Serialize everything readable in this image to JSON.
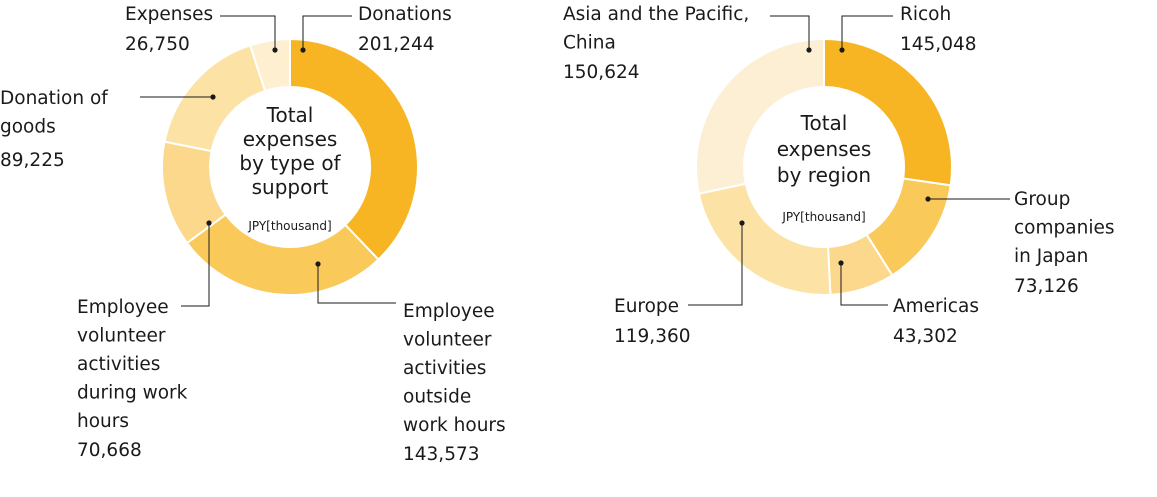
{
  "chart_data": [
    {
      "type": "pie",
      "donut": true,
      "center_title": [
        "Total",
        "expenses",
        "by type of",
        "support"
      ],
      "unit": "JPY[thousand]",
      "slices": [
        {
          "label": [
            "Donations"
          ],
          "value": 201244,
          "value_text": "201,244",
          "color": "#f7b523"
        },
        {
          "label": [
            "Employee",
            "volunteer",
            "activities",
            "outside",
            "work hours"
          ],
          "value": 143573,
          "value_text": "143,573",
          "color": "#f9c95a"
        },
        {
          "label": [
            "Employee",
            "volunteer",
            "activities",
            "during work",
            "hours"
          ],
          "value": 70668,
          "value_text": "70,668",
          "color": "#fbd88b"
        },
        {
          "label": [
            "Donation of",
            "goods"
          ],
          "value": 89225,
          "value_text": "89,225",
          "color": "#fde2a6"
        },
        {
          "label": [
            "Expenses"
          ],
          "value": 26750,
          "value_text": "26,750",
          "color": "#feefd0"
        }
      ]
    },
    {
      "type": "pie",
      "donut": true,
      "center_title": [
        "Total",
        "expenses",
        "by region"
      ],
      "unit": "JPY[thousand]",
      "slices": [
        {
          "label": [
            "Ricoh"
          ],
          "value": 145048,
          "value_text": "145,048",
          "color": "#f7b523"
        },
        {
          "label": [
            "Group",
            "companies",
            "in Japan"
          ],
          "value": 73126,
          "value_text": "73,126",
          "color": "#f9c95a"
        },
        {
          "label": [
            "Americas"
          ],
          "value": 43302,
          "value_text": "43,302",
          "color": "#fbd88b"
        },
        {
          "label": [
            "Europe"
          ],
          "value": 119360,
          "value_text": "119,360",
          "color": "#fde2a6"
        },
        {
          "label": [
            "Asia and the Pacific,",
            "China"
          ],
          "value": 150624,
          "value_text": "150,624",
          "color": "#fdefd4"
        }
      ]
    }
  ]
}
